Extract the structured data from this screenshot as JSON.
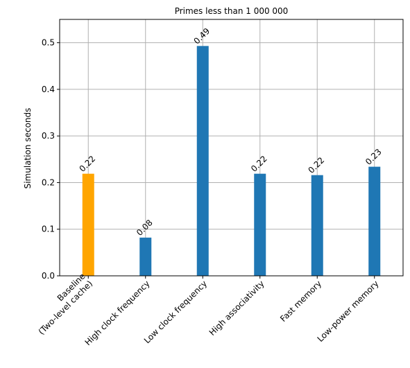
{
  "chart_data": {
    "type": "bar",
    "title": "Primes less than 1 000 000",
    "xlabel": "",
    "ylabel": "Simulation seconds",
    "categories": [
      "Baseline\n(Two-level cache)",
      "High clock frequency",
      "Low clock frequency",
      "High associativity",
      "Fast memory",
      "Low-power memory"
    ],
    "values": [
      0.219,
      0.082,
      0.493,
      0.219,
      0.216,
      0.234
    ],
    "data_labels": [
      "0.22",
      "0.08",
      "0.49",
      "0.22",
      "0.22",
      "0.23"
    ],
    "bar_colors": [
      "#ffa500",
      "#1f77b4",
      "#1f77b4",
      "#1f77b4",
      "#1f77b4",
      "#1f77b4"
    ],
    "ylim": [
      0,
      0.55
    ],
    "yticks": [
      0.0,
      0.1,
      0.2,
      0.3,
      0.4,
      0.5
    ],
    "ytick_labels": [
      "0.0",
      "0.1",
      "0.2",
      "0.3",
      "0.4",
      "0.5"
    ],
    "grid": true,
    "legend": "none"
  }
}
